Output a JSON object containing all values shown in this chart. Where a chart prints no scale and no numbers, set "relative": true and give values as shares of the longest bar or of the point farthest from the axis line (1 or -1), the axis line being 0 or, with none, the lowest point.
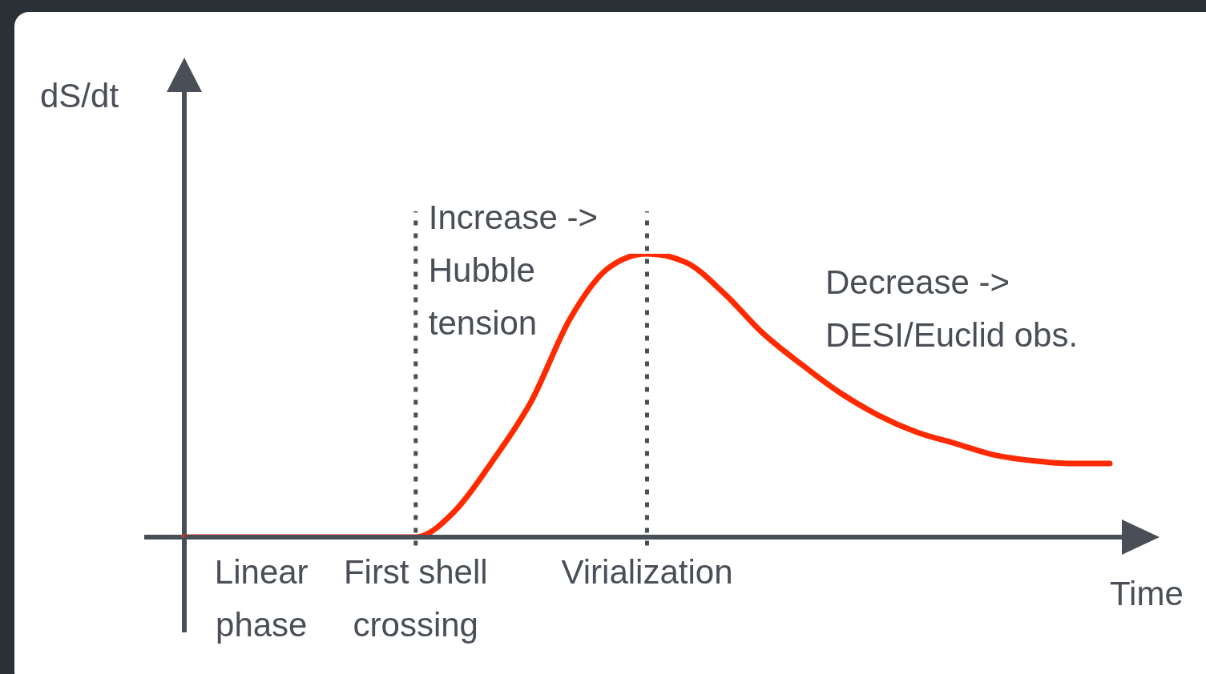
{
  "chart_data": {
    "type": "line",
    "relative": true,
    "xlabel": "Time",
    "ylabel": "dS/dt",
    "categories": [
      null,
      null,
      "Linear phase",
      null,
      null,
      null,
      "First shell crossing",
      null,
      null,
      null,
      null,
      null,
      "Virialization",
      null,
      null,
      null,
      null,
      null,
      null,
      null,
      null,
      null,
      null,
      null,
      null
    ],
    "values": [
      0,
      0,
      0,
      0,
      0,
      0,
      0,
      0.09,
      0.27,
      0.48,
      0.77,
      0.95,
      1,
      0.97,
      0.86,
      0.72,
      0.61,
      0.51,
      0.43,
      0.37,
      0.33,
      0.29,
      0.27,
      0.26,
      0.26
    ],
    "color": "#ff2a00",
    "marker": "none",
    "line_style": "solid",
    "grid": false,
    "legend": false,
    "ref_lines": [
      {
        "axis": "x",
        "value": "First shell crossing",
        "label": "Increase -> Hubble tension",
        "line_style": "dotted",
        "color": "#4a4f57"
      },
      {
        "axis": "x",
        "value": "Virialization",
        "line_style": "dotted",
        "color": "#4a4f57"
      }
    ],
    "annotations": [
      "Decrease -> DESI/Euclid obs."
    ]
  }
}
